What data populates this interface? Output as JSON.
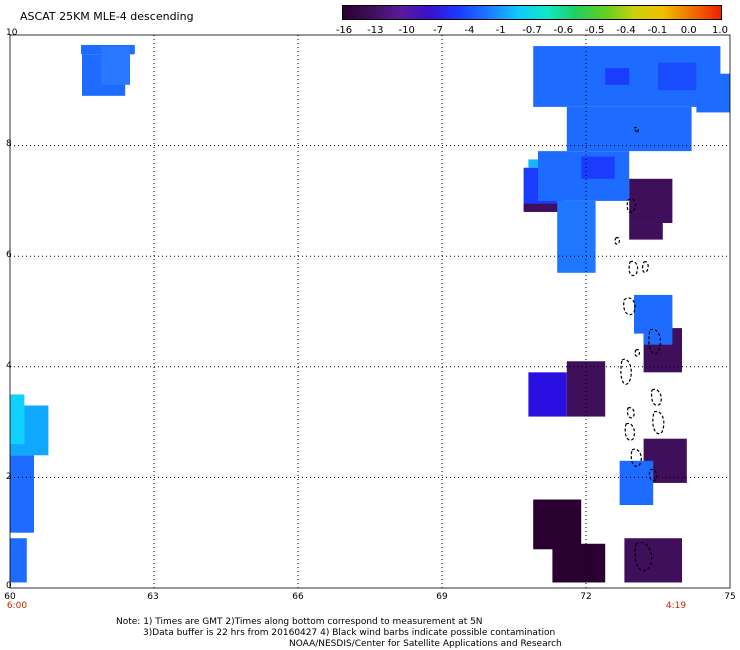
{
  "title": "ASCAT 25KM MLE-4 descending",
  "colorbar": {
    "ticks": [
      "-16",
      "-13",
      "-10",
      "-7",
      "-4",
      "-1",
      "-0.7",
      "-0.6",
      "-0.5",
      "-0.4",
      "-0.1",
      "0.0",
      "1.0"
    ],
    "colors": [
      "#2a0030",
      "#3f0f5c",
      "#5a1a9a",
      "#3a10d0",
      "#1a3cff",
      "#1e78ff",
      "#10c8ff",
      "#10e8c8",
      "#20d060",
      "#60d020",
      "#c8d010",
      "#f0c000",
      "#f07000",
      "#f02000"
    ]
  },
  "axes": {
    "x_ticks": [
      "60",
      "63",
      "66",
      "69",
      "72",
      "75"
    ],
    "y_ticks": [
      "10",
      "8",
      "6",
      "4",
      "2",
      "0"
    ]
  },
  "time_labels": {
    "left": "6:00",
    "right": "4:19"
  },
  "notes": [
    "Note: 1) Times are GMT 2)Times along bottom correspond to measurement at 5N",
    "3)Data buffer is 22 hrs from 20160427 4) Black wind barbs indicate possible contamination",
    "NOAA/NESDIS/Center for Satellite Applications and Research"
  ],
  "map_data": {
    "units": "degrees",
    "lon_range": [
      60,
      75
    ],
    "lat_range": [
      0,
      10
    ],
    "cells": [
      {
        "lon0": 61.48,
        "lat0": 9.65,
        "lon1": 62.6,
        "lat1": 9.82,
        "c": "#1e6cff"
      },
      {
        "lon0": 61.5,
        "lat0": 8.9,
        "lon1": 62.4,
        "lat1": 9.65,
        "c": "#1e6cff"
      },
      {
        "lon0": 61.9,
        "lat0": 9.1,
        "lon1": 62.5,
        "lat1": 9.8,
        "c": "#2a78ff"
      },
      {
        "lon0": 70.8,
        "lat0": 7.6,
        "lon1": 71.1,
        "lat1": 7.75,
        "c": "#10b8ff"
      },
      {
        "lon0": 70.7,
        "lat0": 6.9,
        "lon1": 71.5,
        "lat1": 7.6,
        "c": "#1a3cff"
      },
      {
        "lon0": 70.7,
        "lat0": 6.8,
        "lon1": 71.5,
        "lat1": 6.95,
        "c": "#3f0f5c"
      },
      {
        "lon0": 70.9,
        "lat0": 8.7,
        "lon1": 74.8,
        "lat1": 9.8,
        "c": "#1e6cff"
      },
      {
        "lon0": 71.6,
        "lat0": 7.9,
        "lon1": 74.2,
        "lat1": 8.7,
        "c": "#1e6cff"
      },
      {
        "lon0": 71.0,
        "lat0": 7.0,
        "lon1": 72.9,
        "lat1": 7.9,
        "c": "#1e6cff"
      },
      {
        "lon0": 74.3,
        "lat0": 8.6,
        "lon1": 75.0,
        "lat1": 9.3,
        "c": "#1e6cff"
      },
      {
        "lon0": 72.4,
        "lat0": 9.1,
        "lon1": 72.9,
        "lat1": 9.4,
        "c": "#1a3cff"
      },
      {
        "lon0": 73.5,
        "lat0": 9.0,
        "lon1": 74.3,
        "lat1": 9.5,
        "c": "#1a4cff"
      },
      {
        "lon0": 71.9,
        "lat0": 7.4,
        "lon1": 72.6,
        "lat1": 7.8,
        "c": "#1a3cff"
      },
      {
        "lon0": 71.4,
        "lat0": 5.7,
        "lon1": 72.2,
        "lat1": 7.0,
        "c": "#1e78ff"
      },
      {
        "lon0": 72.9,
        "lat0": 6.6,
        "lon1": 73.8,
        "lat1": 7.4,
        "c": "#3f0f5c"
      },
      {
        "lon0": 72.9,
        "lat0": 6.3,
        "lon1": 73.6,
        "lat1": 6.6,
        "c": "#3f0f5c"
      },
      {
        "lon0": 73.0,
        "lat0": 4.6,
        "lon1": 73.8,
        "lat1": 5.3,
        "c": "#1e6cff"
      },
      {
        "lon0": 73.2,
        "lat0": 3.9,
        "lon1": 74.0,
        "lat1": 4.7,
        "c": "#3f0f5c"
      },
      {
        "lon0": 73.2,
        "lat0": 4.4,
        "lon1": 73.8,
        "lat1": 4.8,
        "c": "#1e6cff"
      },
      {
        "lon0": 70.8,
        "lat0": 3.1,
        "lon1": 71.6,
        "lat1": 3.9,
        "c": "#2a10e0"
      },
      {
        "lon0": 71.6,
        "lat0": 3.1,
        "lon1": 72.4,
        "lat1": 4.1,
        "c": "#3f0f5c"
      },
      {
        "lon0": 73.2,
        "lat0": 1.9,
        "lon1": 74.1,
        "lat1": 2.7,
        "c": "#3f0f5c"
      },
      {
        "lon0": 72.7,
        "lat0": 1.5,
        "lon1": 73.4,
        "lat1": 2.3,
        "c": "#1e6cff"
      },
      {
        "lon0": 70.9,
        "lat0": 0.7,
        "lon1": 71.9,
        "lat1": 1.6,
        "c": "#2a0030"
      },
      {
        "lon0": 71.3,
        "lat0": 0.1,
        "lon1": 72.4,
        "lat1": 0.8,
        "c": "#2a0030"
      },
      {
        "lon0": 72.8,
        "lat0": 0.1,
        "lon1": 74.0,
        "lat1": 0.9,
        "c": "#3f0f5c"
      },
      {
        "lon0": 60.0,
        "lat0": 2.4,
        "lon1": 60.8,
        "lat1": 3.3,
        "c": "#10a8ff"
      },
      {
        "lon0": 60.0,
        "lat0": 2.6,
        "lon1": 60.3,
        "lat1": 3.5,
        "c": "#10d0ff"
      },
      {
        "lon0": 60.0,
        "lat0": 1.0,
        "lon1": 60.5,
        "lat1": 2.4,
        "c": "#1e6cff"
      },
      {
        "lon0": 60.0,
        "lat0": 0.1,
        "lon1": 60.35,
        "lat1": 0.9,
        "c": "#1e6cff"
      }
    ]
  }
}
